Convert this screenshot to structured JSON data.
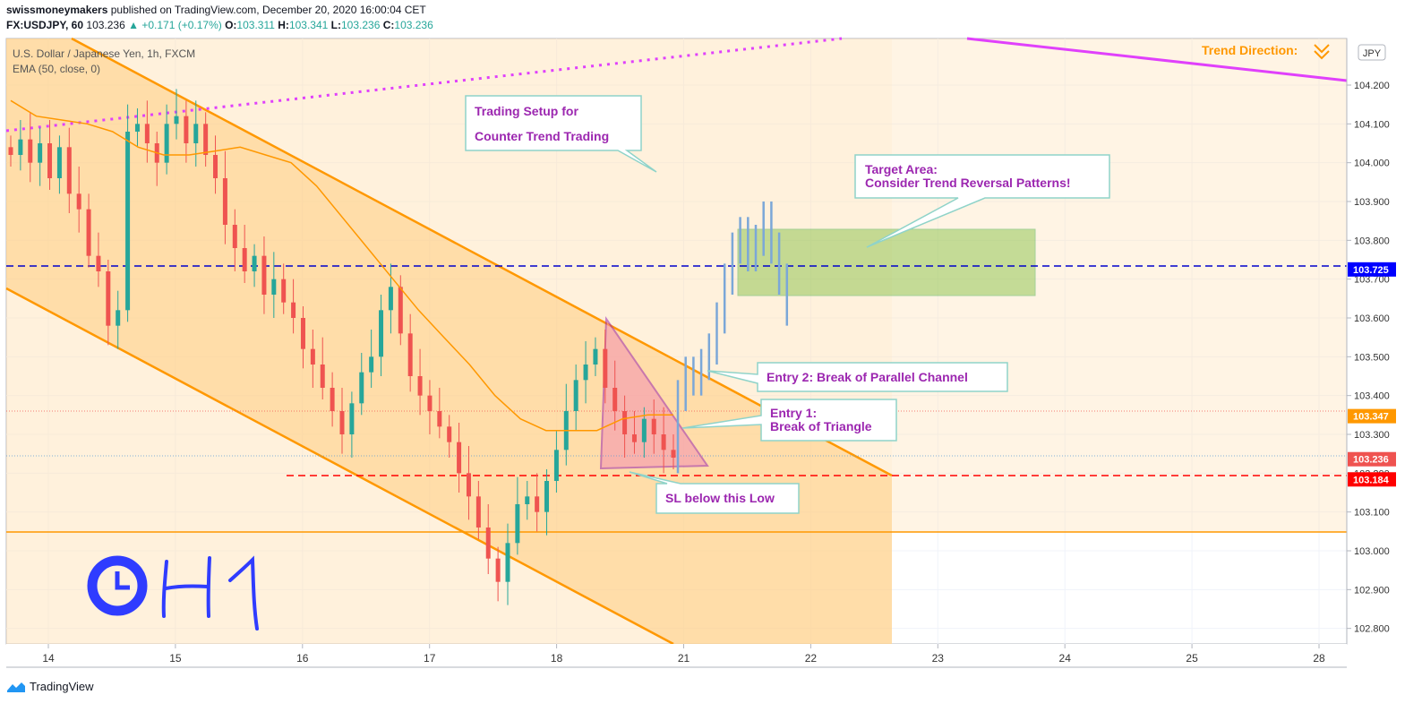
{
  "header": {
    "publisher": "swissmoneymakers",
    "published_text": "published on TradingView.com, December 20, 2020 16:00:04 CET",
    "symbol": "FX:USDJPY, 60",
    "last": "103.236",
    "change": "▲ +0.171 (+0.17%)",
    "o_label": "O:",
    "o": "103.311",
    "h_label": "H:",
    "h": "103.341",
    "l_label": "L:",
    "l": "103.236",
    "c_label": "C:",
    "c": "103.236"
  },
  "legend": {
    "instrument": "U.S. Dollar / Japanese Yen, 1h, FXCM",
    "indicator": "EMA (50, close, 0)"
  },
  "trend_direction_label": "Trend Direction:",
  "currency_badge": "JPY",
  "footer": {
    "brand": "TradingView"
  },
  "annotations": {
    "setup_line1": "Trading Setup for",
    "setup_line2": "Counter Trend Trading",
    "target_line1": "Target Area:",
    "target_line2": "Consider Trend Reversal Patterns!",
    "entry2": "Entry 2: Break of Parallel Channel",
    "entry1_line1": "Entry 1:",
    "entry1_line2": "Break of Triangle",
    "sl": "SL below this Low",
    "handwriting": "H1"
  },
  "colors": {
    "bull": "#26a69a",
    "bear": "#ef5350",
    "channel": "#ff9800",
    "magenta": "#e040fb",
    "purple": "#9c27b0",
    "target_zone": "#8bc34a",
    "entry_line": "#0000ff",
    "stop_line": "#ff0000",
    "handwriting": "#2f3cff",
    "projection": "#7ba7d8"
  },
  "chart_data": {
    "type": "candlestick",
    "symbol": "USDJPY",
    "timeframe": "1h",
    "x_ticks": [
      "14",
      "15",
      "16",
      "17",
      "18",
      "21",
      "22",
      "23",
      "24",
      "25",
      "28"
    ],
    "y_ticks": [
      "104.200",
      "104.100",
      "104.000",
      "103.900",
      "103.800",
      "103.700",
      "103.600",
      "103.500",
      "103.400",
      "103.300",
      "103.200",
      "103.100",
      "103.000",
      "102.900",
      "102.800"
    ],
    "ylim": [
      102.76,
      104.32
    ],
    "price_tags": [
      {
        "value": 103.725,
        "label": "103.725",
        "color": "#0000ff"
      },
      {
        "value": 103.347,
        "label": "103.347",
        "color": "#ff9800"
      },
      {
        "value": 103.236,
        "label": "103.236",
        "color": "#ef5350"
      },
      {
        "value": 103.184,
        "label": "103.184",
        "color": "#ff0000"
      }
    ],
    "levels": {
      "entry": 103.725,
      "stop": 103.184,
      "horizontal_support": 103.04,
      "dotted_red": 103.35,
      "dotted_blue": 103.236
    },
    "target_zone": [
      103.65,
      103.825
    ],
    "ema_close": [
      104.16,
      104.12,
      104.11,
      104.1,
      104.08,
      104.04,
      104.02,
      104.02,
      104.03,
      104.04,
      104.02,
      104.0,
      103.94,
      103.86,
      103.78,
      103.7,
      103.62,
      103.55,
      103.48,
      103.4,
      103.34,
      103.31,
      103.31,
      103.31,
      103.34,
      103.35,
      103.35
    ],
    "closes": [
      104.02,
      104.06,
      104.0,
      104.05,
      103.96,
      104.04,
      103.92,
      103.88,
      103.76,
      103.72,
      103.58,
      103.62,
      104.08,
      104.1,
      104.05,
      104.0,
      104.1,
      104.12,
      104.05,
      104.1,
      104.02,
      103.96,
      103.84,
      103.78,
      103.72,
      103.76,
      103.66,
      103.7,
      103.64,
      103.6,
      103.52,
      103.48,
      103.42,
      103.36,
      103.3,
      103.38,
      103.46,
      103.5,
      103.62,
      103.68,
      103.56,
      103.45,
      103.4,
      103.36,
      103.32,
      103.28,
      103.2,
      103.14,
      103.06,
      102.98,
      102.92,
      103.02,
      103.12,
      103.14,
      103.1,
      103.18,
      103.26,
      103.36,
      103.44,
      103.48,
      103.52,
      103.42,
      103.36,
      103.3,
      103.28,
      103.34,
      103.3,
      103.26,
      103.24
    ],
    "projection_closes": [
      103.4,
      103.46,
      103.44,
      103.48,
      103.52,
      103.6,
      103.7,
      103.78,
      103.82,
      103.76,
      103.8,
      103.86,
      103.78,
      103.7,
      103.62
    ]
  }
}
